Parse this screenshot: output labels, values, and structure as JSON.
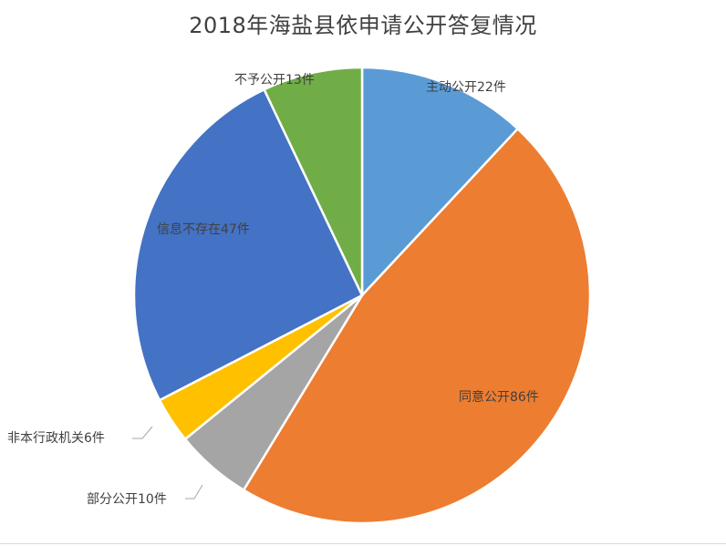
{
  "chart_data": {
    "type": "pie",
    "title": "2018年海盐县依申请公开答复情况",
    "slices": [
      {
        "name": "主动公开",
        "value": 22,
        "label": "主动公开22件",
        "color": "#5B9BD5"
      },
      {
        "name": "同意公开",
        "value": 86,
        "label": "同意公开86件",
        "color": "#ED7D31"
      },
      {
        "name": "部分公开",
        "value": 10,
        "label": "部分公开10件",
        "color": "#A5A5A5"
      },
      {
        "name": "非本行政机关",
        "value": 6,
        "label": "非本行政机关6件",
        "color": "#FFC000"
      },
      {
        "name": "信息不存在",
        "value": 47,
        "label": "信息不存在47件",
        "color": "#4472C4"
      },
      {
        "name": "不予公开",
        "value": 13,
        "label": "不予公开13件",
        "color": "#70AD47"
      }
    ]
  }
}
